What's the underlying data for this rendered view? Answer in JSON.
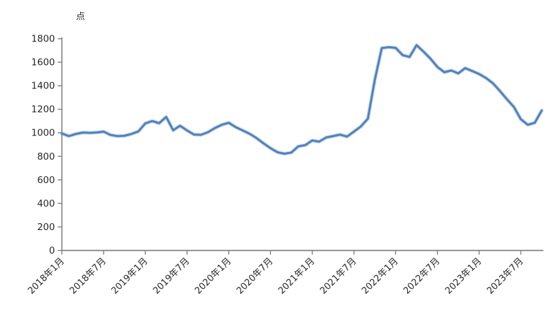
{
  "page": {
    "background": "#ffffff"
  },
  "chart_data": {
    "type": "line",
    "title": "",
    "unit_label": "点",
    "ylabel": "点",
    "xlabel": "",
    "ylim": [
      0,
      1800
    ],
    "y_tick_step": 200,
    "y_ticks": [
      0,
      200,
      400,
      600,
      800,
      1000,
      1200,
      1400,
      1600,
      1800
    ],
    "x_tick_labels": [
      "2018年1月",
      "2018年7月",
      "2019年1月",
      "2019年7月",
      "2020年1月",
      "2020年7月",
      "2021年1月",
      "2021年7月",
      "2022年1月",
      "2022年7月",
      "2023年1月",
      "2023年7月"
    ],
    "x_tick_every_months": 6,
    "grid": false,
    "legend": "none",
    "line_color": "#4f81bd",
    "axis_color": "#7f7f7f",
    "text_color": "#262626",
    "months": [
      "2018-01",
      "2018-02",
      "2018-03",
      "2018-04",
      "2018-05",
      "2018-06",
      "2018-07",
      "2018-08",
      "2018-09",
      "2018-10",
      "2018-11",
      "2018-12",
      "2019-01",
      "2019-02",
      "2019-03",
      "2019-04",
      "2019-05",
      "2019-06",
      "2019-07",
      "2019-08",
      "2019-09",
      "2019-10",
      "2019-11",
      "2019-12",
      "2020-01",
      "2020-02",
      "2020-03",
      "2020-04",
      "2020-05",
      "2020-06",
      "2020-07",
      "2020-08",
      "2020-09",
      "2020-10",
      "2020-11",
      "2020-12",
      "2021-01",
      "2021-02",
      "2021-03",
      "2021-04",
      "2021-05",
      "2021-06",
      "2021-07",
      "2021-08",
      "2021-09",
      "2021-10",
      "2021-11",
      "2021-12",
      "2022-01",
      "2022-02",
      "2022-03",
      "2022-04",
      "2022-05",
      "2022-06",
      "2022-07",
      "2022-08",
      "2022-09",
      "2022-10",
      "2022-11",
      "2022-12",
      "2023-01",
      "2023-02",
      "2023-03",
      "2023-04",
      "2023-05",
      "2023-06",
      "2023-07",
      "2023-08",
      "2023-09",
      "2023-10"
    ],
    "values": [
      995,
      972,
      990,
      1002,
      1000,
      1003,
      1010,
      982,
      972,
      975,
      990,
      1012,
      1080,
      1100,
      1082,
      1135,
      1022,
      1060,
      1020,
      985,
      983,
      1005,
      1040,
      1068,
      1085,
      1048,
      1020,
      992,
      955,
      910,
      870,
      835,
      822,
      832,
      885,
      895,
      935,
      925,
      960,
      972,
      985,
      968,
      1010,
      1055,
      1120,
      1450,
      1720,
      1728,
      1722,
      1660,
      1645,
      1745,
      1690,
      1630,
      1560,
      1515,
      1530,
      1505,
      1550,
      1525,
      1500,
      1465,
      1420,
      1355,
      1285,
      1220,
      1115,
      1068,
      1085,
      1190
    ]
  }
}
